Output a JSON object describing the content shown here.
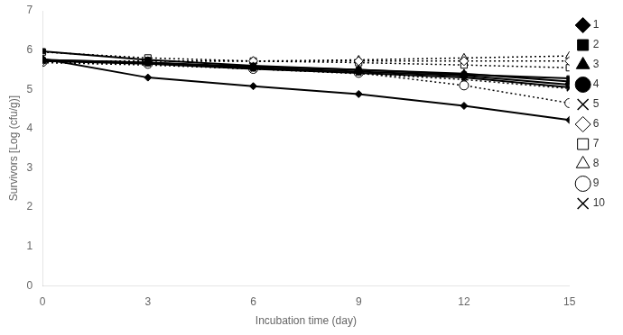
{
  "chart_data": {
    "type": "line",
    "x": [
      0,
      3,
      6,
      9,
      12,
      15
    ],
    "series": [
      {
        "name": "1",
        "color": "black",
        "marker": "diamond",
        "line_style": "solid",
        "values": [
          5.78,
          5.3,
          5.08,
          4.88,
          4.58,
          4.22
        ]
      },
      {
        "name": "2",
        "color": "black",
        "marker": "square",
        "line_style": "solid",
        "values": [
          5.97,
          5.75,
          5.6,
          5.5,
          5.38,
          5.28
        ]
      },
      {
        "name": "3",
        "color": "black",
        "marker": "triangle",
        "line_style": "solid",
        "values": [
          5.75,
          5.68,
          5.58,
          5.5,
          5.4,
          5.2
        ]
      },
      {
        "name": "4",
        "color": "black",
        "marker": "circle",
        "line_style": "solid",
        "values": [
          5.75,
          5.68,
          5.55,
          5.45,
          5.35,
          5.12
        ]
      },
      {
        "name": "5",
        "color": "black",
        "marker": "x",
        "line_style": "solid",
        "values": [
          5.72,
          5.65,
          5.52,
          5.42,
          5.3,
          5.05
        ]
      },
      {
        "name": "6",
        "color": "black",
        "marker": "diamond-open",
        "line_style": "dotted",
        "values": [
          5.72,
          5.72,
          5.72,
          5.72,
          5.72,
          5.72
        ]
      },
      {
        "name": "7",
        "color": "black",
        "marker": "square-open",
        "line_style": "dotted",
        "values": [
          5.95,
          5.8,
          5.72,
          5.68,
          5.62,
          5.55
        ]
      },
      {
        "name": "8",
        "color": "black",
        "marker": "triangle-open",
        "line_style": "dotted",
        "values": [
          5.72,
          5.72,
          5.72,
          5.75,
          5.8,
          5.85
        ]
      },
      {
        "name": "9",
        "color": "black",
        "marker": "circle-open",
        "line_style": "dotted",
        "values": [
          5.7,
          5.65,
          5.52,
          5.42,
          5.1,
          4.65
        ]
      },
      {
        "name": "10",
        "color": "black",
        "marker": "x",
        "line_style": "dotted",
        "values": [
          5.68,
          5.62,
          5.52,
          5.4,
          5.25,
          5.02
        ]
      }
    ],
    "x_label": "Incubation time (day)",
    "y_label": "Survivors [Log (cfu/g)]",
    "xlim": [
      0,
      15
    ],
    "ylim": [
      0,
      7
    ],
    "xticks": [
      0,
      3,
      6,
      9,
      12,
      15
    ],
    "yticks": [
      0,
      1,
      2,
      3,
      4,
      5,
      6,
      7
    ],
    "grid": false,
    "legend": "right"
  }
}
